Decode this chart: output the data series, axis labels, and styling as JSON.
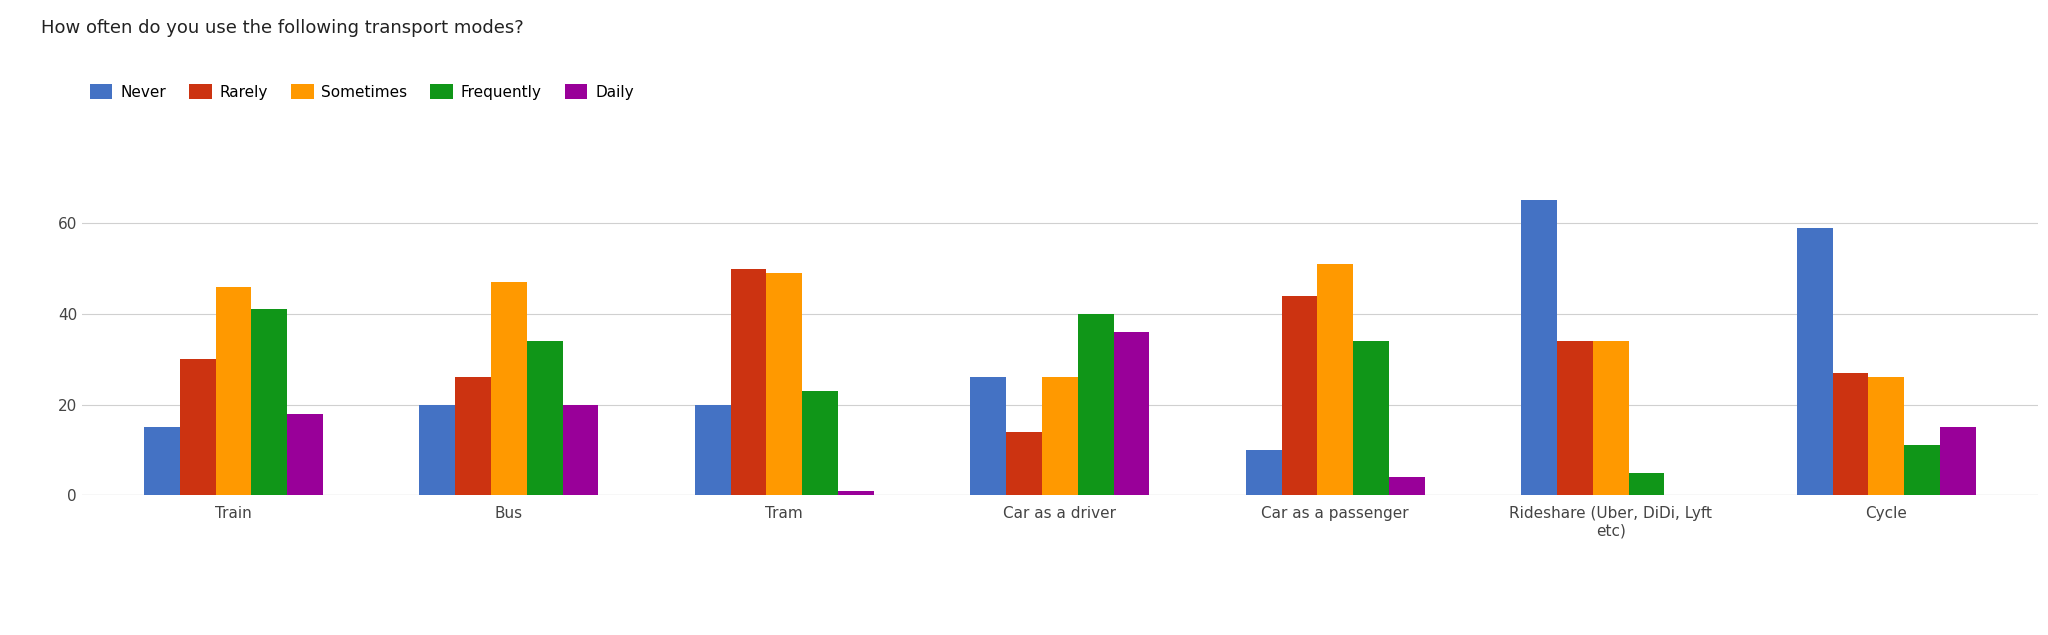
{
  "title": "How often do you use the following transport modes?",
  "categories": [
    "Train",
    "Bus",
    "Tram",
    "Car as a driver",
    "Car as a passenger",
    "Rideshare (Uber, DiDi, Lyft\netc)",
    "Cycle"
  ],
  "series": [
    {
      "label": "Never",
      "color": "#4472C4",
      "values": [
        15,
        20,
        20,
        26,
        10,
        65,
        59
      ]
    },
    {
      "label": "Rarely",
      "color": "#CC3311",
      "values": [
        30,
        26,
        50,
        14,
        44,
        34,
        27
      ]
    },
    {
      "label": "Sometimes",
      "color": "#FF9900",
      "values": [
        46,
        47,
        49,
        26,
        51,
        34,
        26
      ]
    },
    {
      "label": "Frequently",
      "color": "#109618",
      "values": [
        41,
        34,
        23,
        40,
        34,
        5,
        11
      ]
    },
    {
      "label": "Daily",
      "color": "#990099",
      "values": [
        18,
        20,
        1,
        36,
        4,
        0,
        15
      ]
    }
  ],
  "ylim": [
    0,
    70
  ],
  "yticks": [
    0,
    20,
    40,
    60
  ],
  "background_color": "#ffffff",
  "grid_color": "#d0d0d0",
  "title_fontsize": 13,
  "legend_fontsize": 11,
  "tick_fontsize": 11,
  "bar_width": 0.13
}
